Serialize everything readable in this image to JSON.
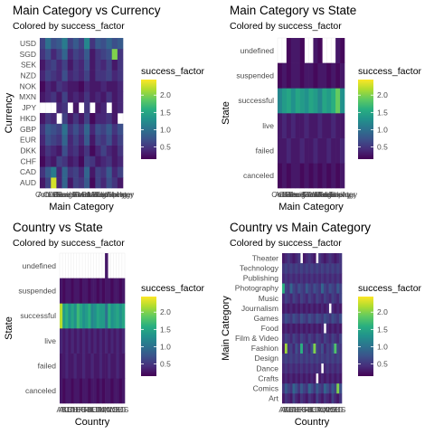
{
  "palette": [
    "#440154",
    "#472d7b",
    "#3b528b",
    "#2c728e",
    "#21918c",
    "#28ae80",
    "#5ec962",
    "#addc30",
    "#fde725"
  ],
  "chart_data": [
    {
      "type": "heatmap",
      "title": "Main Category vs Currency",
      "subtitle": "Colored by success_factor",
      "xlabel": "Main Category",
      "ylabel": "Currency",
      "x_categories": [
        "Art",
        "Comics",
        "Crafts",
        "Dance",
        "Design",
        "Fashion",
        "Film & Video",
        "Food",
        "Games",
        "Journalism",
        "Music",
        "Photography",
        "Publishing",
        "Technology",
        "Theater"
      ],
      "x_tick_labels": [
        "Art",
        "Comics",
        "Crafts",
        "Dance",
        "Design",
        "Fashion",
        "Film & Video",
        "Food",
        "Games",
        "Journalism",
        "Music",
        "Photography",
        "Publishing",
        "Technology",
        "Theater"
      ],
      "y_categories": [
        "AUD",
        "CAD",
        "CHF",
        "DKK",
        "EUR",
        "GBP",
        "HKD",
        "JPY",
        "MXN",
        "NOK",
        "NZD",
        "SEK",
        "SGD",
        "USD"
      ],
      "values": [
        [
          0.3,
          0.6,
          2.3,
          0.4,
          0.9,
          0.3,
          0.6,
          0.5,
          0.8,
          0.2,
          0.6,
          0.4,
          0.7,
          0.5,
          0.3
        ],
        [
          0.5,
          0.8,
          1.1,
          0.4,
          0.9,
          0.5,
          0.6,
          0.4,
          0.9,
          0.3,
          0.6,
          0.5,
          0.8,
          0.4,
          0.6
        ],
        [
          0.2,
          0.4,
          0.3,
          0.6,
          0.5,
          0.3,
          0.4,
          0.2,
          0.6,
          0.5,
          0.3,
          0.4,
          0.5,
          0.3,
          0.4
        ],
        [
          0.3,
          0.5,
          0.4,
          0.3,
          0.7,
          0.4,
          0.5,
          0.3,
          0.5,
          0.2,
          0.4,
          0.6,
          0.4,
          0.3,
          0.5
        ],
        [
          0.4,
          0.7,
          0.6,
          0.5,
          0.9,
          0.4,
          0.6,
          0.4,
          0.8,
          0.3,
          0.6,
          0.5,
          0.7,
          0.4,
          0.6
        ],
        [
          0.5,
          0.8,
          0.7,
          0.6,
          1.0,
          0.5,
          0.7,
          0.5,
          0.9,
          0.4,
          0.7,
          0.6,
          0.8,
          0.5,
          0.7
        ],
        [
          0.3,
          0.5,
          0.4,
          null,
          0.6,
          0.3,
          0.5,
          0.3,
          0.6,
          0.2,
          0.4,
          0.4,
          0.5,
          0.3,
          null
        ],
        [
          null,
          null,
          null,
          0.4,
          0.5,
          null,
          0.3,
          null,
          0.5,
          null,
          0.3,
          0.4,
          null,
          0.3,
          0.4
        ],
        [
          0.3,
          0.4,
          0.5,
          0.3,
          0.6,
          0.3,
          0.4,
          0.3,
          0.5,
          0.3,
          0.4,
          0.3,
          0.5,
          0.3,
          0.4
        ],
        [
          0.2,
          0.4,
          0.3,
          0.5,
          0.4,
          0.3,
          0.3,
          0.2,
          0.4,
          0.3,
          0.3,
          0.4,
          0.3,
          0.3,
          0.4
        ],
        [
          0.4,
          0.6,
          0.5,
          0.4,
          0.7,
          0.4,
          0.5,
          0.4,
          0.6,
          0.3,
          0.5,
          0.5,
          0.6,
          0.4,
          0.5
        ],
        [
          0.3,
          0.5,
          0.6,
          0.4,
          0.6,
          0.3,
          0.5,
          0.4,
          0.7,
          0.3,
          0.5,
          0.4,
          0.6,
          0.3,
          0.5
        ],
        [
          0.5,
          0.7,
          0.4,
          0.6,
          0.9,
          0.4,
          0.6,
          0.5,
          0.8,
          0.3,
          0.5,
          0.6,
          0.7,
          2.0,
          0.5
        ],
        [
          0.6,
          1.0,
          0.7,
          0.8,
          1.1,
          0.6,
          0.8,
          0.6,
          1.2,
          0.5,
          0.8,
          0.7,
          0.9,
          0.7,
          0.8
        ]
      ]
    },
    {
      "type": "heatmap",
      "title": "Main Category vs State",
      "subtitle": "Colored by success_factor",
      "xlabel": "Main Category",
      "ylabel": "State",
      "x_categories": [
        "Art",
        "Comics",
        "Crafts",
        "Dance",
        "Design",
        "Fashion",
        "Film & Video",
        "Food",
        "Games",
        "Journalism",
        "Music",
        "Photography",
        "Publishing",
        "Technology",
        "Theater"
      ],
      "x_tick_labels": [
        "Art",
        "Comics",
        "Crafts",
        "Dance",
        "Design",
        "Fashion",
        "Film & Video",
        "Food",
        "Games",
        "Journalism",
        "Music",
        "Photography",
        "Publishing",
        "Technology",
        "Theater"
      ],
      "y_categories": [
        "canceled",
        "failed",
        "live",
        "successful",
        "suspended",
        "undefined"
      ],
      "values": [
        [
          0.2,
          0.3,
          0.2,
          0.3,
          0.3,
          0.2,
          0.3,
          0.2,
          0.3,
          0.2,
          0.3,
          0.2,
          0.3,
          0.2,
          0.3
        ],
        [
          0.3,
          0.3,
          0.4,
          0.3,
          0.3,
          0.4,
          0.3,
          0.3,
          0.4,
          0.3,
          0.3,
          0.4,
          0.3,
          0.3,
          0.4
        ],
        [
          0.3,
          0.4,
          0.3,
          0.4,
          0.3,
          0.3,
          0.4,
          0.3,
          0.3,
          0.4,
          0.3,
          0.3,
          0.4,
          0.3,
          0.3
        ],
        [
          1.2,
          1.4,
          1.5,
          1.3,
          1.5,
          1.4,
          1.3,
          1.5,
          1.4,
          1.2,
          1.5,
          1.4,
          1.6,
          1.9,
          1.3
        ],
        [
          0.2,
          0.3,
          0.2,
          0.3,
          0.3,
          0.2,
          0.3,
          0.3,
          0.2,
          0.3,
          0.3,
          0.2,
          0.3,
          0.2,
          0.3
        ],
        [
          null,
          null,
          0.2,
          0.3,
          0.3,
          0.2,
          null,
          null,
          0.3,
          0.2,
          null,
          null,
          null,
          0.3,
          0.2
        ]
      ]
    },
    {
      "type": "heatmap",
      "title": "Country vs State",
      "subtitle": "Colored by success_factor",
      "xlabel": "Country",
      "ylabel": "State",
      "x_categories": [
        "AT",
        "AU",
        "BE",
        "CA",
        "CH",
        "DE",
        "DK",
        "ES",
        "FR",
        "GB",
        "HK",
        "IE",
        "IT",
        "JP",
        "LU",
        "MX",
        "N,0\"",
        "NL",
        "NO",
        "NZ",
        "SE",
        "SG",
        "US"
      ],
      "x_tick_labels": [
        "AT",
        "AU",
        "BE",
        "CA",
        "CH",
        "DE",
        "DK",
        "ES",
        "FR",
        "GB",
        "HK",
        "IE",
        "IT",
        "JP",
        "LU",
        "MX",
        "N,0\"",
        "NL",
        "NO",
        "NZ",
        "SE",
        "SG",
        "US"
      ],
      "y_categories": [
        "canceled",
        "failed",
        "live",
        "successful",
        "suspended",
        "undefined"
      ],
      "values": [
        [
          0.3,
          0.2,
          0.3,
          0.3,
          0.2,
          0.3,
          0.3,
          0.2,
          0.3,
          0.3,
          0.2,
          0.3,
          0.3,
          0.2,
          0.3,
          0.2,
          0.3,
          0.3,
          0.2,
          0.3,
          0.3,
          0.2,
          0.3
        ],
        [
          0.3,
          0.3,
          0.4,
          0.3,
          0.3,
          0.4,
          0.3,
          0.3,
          0.4,
          0.3,
          0.3,
          0.4,
          0.3,
          0.3,
          0.4,
          0.3,
          0.3,
          0.4,
          0.3,
          0.3,
          0.4,
          0.3,
          0.3
        ],
        [
          0.4,
          0.3,
          0.4,
          0.3,
          0.4,
          0.3,
          0.4,
          0.3,
          0.4,
          0.3,
          0.4,
          0.3,
          0.4,
          0.3,
          0.4,
          0.3,
          0.4,
          0.3,
          0.4,
          0.3,
          0.4,
          0.3,
          0.4
        ],
        [
          2.2,
          1.4,
          1.6,
          1.3,
          1.5,
          1.3,
          1.7,
          1.5,
          1.3,
          1.4,
          1.6,
          1.2,
          1.3,
          1.5,
          1.4,
          1.4,
          1.0,
          1.6,
          1.3,
          1.4,
          1.5,
          1.3,
          1.5
        ],
        [
          0.3,
          0.2,
          0.3,
          0.3,
          0.2,
          0.3,
          0.3,
          0.2,
          0.3,
          0.3,
          0.2,
          0.3,
          0.3,
          0.2,
          0.3,
          0.2,
          0.3,
          0.3,
          0.2,
          0.3,
          0.3,
          0.2,
          0.3
        ],
        [
          null,
          null,
          null,
          null,
          null,
          null,
          null,
          null,
          null,
          null,
          null,
          null,
          null,
          null,
          null,
          null,
          0.3,
          null,
          null,
          null,
          null,
          null,
          null
        ]
      ]
    },
    {
      "type": "heatmap",
      "title": "Country vs Main Category",
      "subtitle": "Colored by success_factor",
      "xlabel": "Country",
      "ylabel": "Main Category",
      "x_categories": [
        "AT",
        "AU",
        "BE",
        "CA",
        "CH",
        "DE",
        "DK",
        "ES",
        "FR",
        "GB",
        "HK",
        "IE",
        "IT",
        "JP",
        "LU",
        "MX",
        "N,0\"",
        "NL",
        "NO",
        "NZ",
        "SE",
        "SG",
        "US"
      ],
      "x_tick_labels": [
        "AT",
        "AU",
        "BE",
        "CA",
        "CH",
        "DE",
        "DK",
        "ES",
        "FR",
        "GB",
        "HK",
        "IE",
        "IT",
        "JP",
        "LU",
        "MX",
        "N,0\"",
        "NL",
        "NO",
        "NZ",
        "SE",
        "SG",
        "US"
      ],
      "y_categories": [
        "Art",
        "Comics",
        "Crafts",
        "Dance",
        "Design",
        "Fashion",
        "Film & Video",
        "Food",
        "Games",
        "Journalism",
        "Music",
        "Photography",
        "Publishing",
        "Technology",
        "Theater"
      ],
      "values": [
        [
          0.3,
          0.5,
          0.4,
          0.3,
          0.6,
          0.4,
          0.3,
          0.5,
          0.4,
          0.3,
          0.5,
          0.4,
          0.3,
          0.6,
          0.4,
          0.3,
          0.5,
          0.4,
          0.3,
          0.6,
          0.4,
          0.3,
          0.5
        ],
        [
          0.5,
          0.8,
          0.6,
          0.5,
          0.9,
          0.7,
          0.5,
          0.8,
          0.6,
          0.5,
          0.9,
          0.7,
          0.5,
          0.8,
          0.6,
          0.5,
          0.9,
          0.7,
          0.5,
          0.8,
          0.6,
          2.0,
          0.7
        ],
        [
          0.3,
          0.4,
          0.3,
          0.4,
          0.3,
          0.4,
          0.3,
          0.4,
          0.3,
          0.4,
          0.3,
          0.4,
          0.3,
          null,
          0.3,
          0.4,
          0.3,
          0.4,
          0.3,
          0.4,
          0.3,
          0.4,
          0.3
        ],
        [
          0.4,
          0.5,
          0.4,
          0.5,
          0.4,
          0.5,
          0.4,
          0.5,
          0.4,
          0.5,
          0.4,
          0.5,
          0.4,
          0.5,
          0.4,
          null,
          0.4,
          0.5,
          0.4,
          0.5,
          0.4,
          0.5,
          0.4
        ],
        [
          0.5,
          0.6,
          0.5,
          0.6,
          0.5,
          0.6,
          0.5,
          0.6,
          0.5,
          0.6,
          0.5,
          0.6,
          0.5,
          0.6,
          0.5,
          0.6,
          0.5,
          0.6,
          0.5,
          0.6,
          0.5,
          0.6,
          0.5
        ],
        [
          0.3,
          2.1,
          0.5,
          0.6,
          0.4,
          0.7,
          0.5,
          1.6,
          0.5,
          0.6,
          0.4,
          0.7,
          2.0,
          0.6,
          0.5,
          0.7,
          0.4,
          0.6,
          0.5,
          0.7,
          1.8,
          0.6,
          0.5
        ],
        [
          0.4,
          0.6,
          0.5,
          0.4,
          0.6,
          0.5,
          0.4,
          0.6,
          0.5,
          0.4,
          0.6,
          0.5,
          0.4,
          0.6,
          0.5,
          0.4,
          0.6,
          0.5,
          0.4,
          0.6,
          0.5,
          0.4,
          0.6
        ],
        [
          0.3,
          0.4,
          0.3,
          0.4,
          0.3,
          0.4,
          0.3,
          0.4,
          0.3,
          0.4,
          0.3,
          0.4,
          0.3,
          0.4,
          0.3,
          0.4,
          null,
          0.4,
          0.3,
          0.4,
          0.3,
          0.4,
          0.3
        ],
        [
          0.5,
          0.7,
          0.6,
          0.5,
          0.7,
          0.6,
          0.5,
          0.7,
          0.6,
          0.5,
          0.7,
          0.6,
          0.5,
          0.7,
          0.6,
          0.5,
          0.7,
          0.6,
          0.5,
          0.7,
          0.6,
          0.5,
          0.7
        ],
        [
          0.3,
          0.4,
          0.3,
          0.4,
          0.3,
          0.4,
          0.3,
          0.4,
          0.3,
          0.4,
          0.3,
          0.4,
          0.3,
          0.4,
          0.3,
          0.4,
          0.3,
          0.4,
          null,
          0.4,
          0.3,
          0.4,
          0.3
        ],
        [
          0.4,
          0.6,
          0.5,
          0.4,
          0.6,
          0.5,
          0.4,
          0.6,
          0.5,
          0.4,
          0.6,
          0.5,
          0.4,
          0.6,
          0.5,
          0.4,
          0.6,
          0.5,
          0.4,
          0.6,
          0.5,
          0.4,
          0.6
        ],
        [
          1.6,
          0.6,
          0.5,
          0.9,
          0.6,
          0.5,
          0.7,
          0.6,
          0.5,
          0.8,
          0.6,
          0.5,
          0.7,
          0.6,
          0.5,
          0.9,
          0.6,
          0.5,
          0.7,
          0.6,
          0.5,
          0.8,
          0.6
        ],
        [
          0.4,
          0.5,
          0.4,
          0.5,
          0.4,
          0.5,
          0.4,
          0.5,
          0.4,
          0.5,
          0.4,
          0.5,
          0.4,
          0.5,
          0.4,
          0.5,
          0.4,
          0.5,
          0.4,
          0.5,
          0.4,
          0.5,
          0.4
        ],
        [
          0.5,
          0.6,
          0.5,
          0.6,
          0.5,
          0.6,
          0.5,
          0.6,
          0.5,
          0.6,
          0.5,
          0.6,
          0.5,
          0.6,
          0.5,
          0.6,
          0.5,
          0.6,
          0.5,
          0.6,
          0.5,
          0.6,
          0.5
        ],
        [
          0.3,
          0.4,
          0.5,
          0.4,
          0.3,
          0.4,
          0.5,
          null,
          0.3,
          0.4,
          0.5,
          0.4,
          0.3,
          null,
          0.5,
          0.4,
          0.3,
          0.4,
          0.5,
          0.4,
          0.3,
          0.4,
          0.5
        ]
      ]
    }
  ],
  "legend": {
    "title": "success_factor",
    "ticks": [
      2.0,
      1.5,
      1.0,
      0.5
    ],
    "tick_labels": [
      "2.0",
      "1.5",
      "1.0",
      "0.5"
    ],
    "min": 0.15,
    "max": 2.45
  }
}
